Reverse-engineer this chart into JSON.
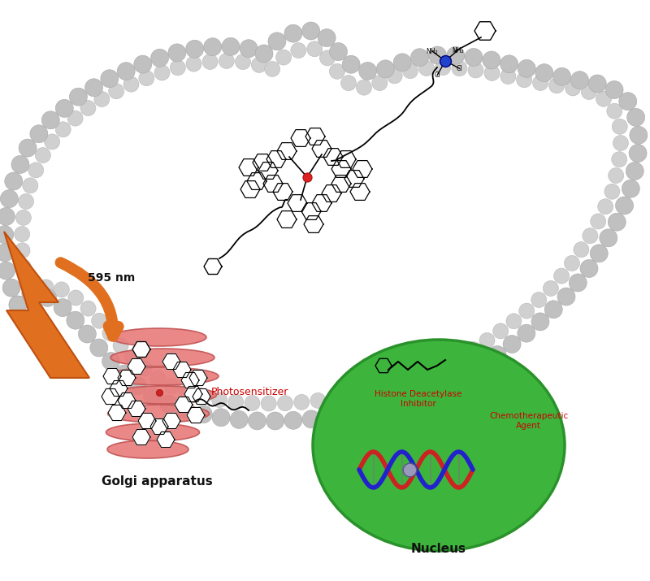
{
  "bg_color": "#ffffff",
  "cell_membrane_outer_color": "#c0c0c0",
  "cell_membrane_inner_color": "#d0d0d0",
  "nucleus_color": "#3db53d",
  "nucleus_border_color": "#2a922a",
  "golgi_color": "#e87878",
  "golgi_border_color": "#c05050",
  "arrow_color": "#e07020",
  "arrow_text": "595 nm",
  "golgi_label": "Golgi apparatus",
  "nucleus_label": "Nucleus",
  "photosensitizer_label": "Photosensitizer",
  "hdac_label": "Histone Deacetylase\nInhibitor",
  "chemo_label": "Chemotherapeutic\nAgent",
  "label_color_red": "#cc0000",
  "label_color_black": "#111111",
  "cell_outer_x": [
    25,
    10,
    8,
    12,
    30,
    60,
    100,
    150,
    200,
    255,
    290,
    310,
    318,
    322,
    325,
    328,
    332,
    340,
    355,
    375,
    400,
    420,
    440,
    455,
    465,
    472,
    478,
    490,
    510,
    535,
    560,
    590,
    625,
    660,
    700,
    735,
    760,
    775,
    782,
    785,
    785,
    783,
    778,
    768,
    752,
    730,
    702,
    668,
    630,
    588,
    542,
    495,
    448,
    402,
    358,
    315,
    272,
    230,
    190,
    155,
    120,
    90,
    65,
    45,
    30,
    18,
    12,
    15,
    22,
    25
  ],
  "cell_outer_y_img": [
    385,
    340,
    295,
    248,
    205,
    168,
    135,
    108,
    88,
    75,
    68,
    65,
    62,
    60,
    58,
    62,
    68,
    80,
    90,
    95,
    93,
    88,
    80,
    72,
    68,
    65,
    63,
    62,
    65,
    70,
    75,
    80,
    82,
    85,
    95,
    115,
    140,
    170,
    205,
    240,
    278,
    315,
    350,
    385,
    418,
    448,
    475,
    498,
    515,
    528,
    535,
    537,
    535,
    528,
    518,
    505,
    490,
    475,
    460,
    445,
    432,
    422,
    412,
    405,
    400,
    398,
    395,
    390,
    388,
    385
  ]
}
